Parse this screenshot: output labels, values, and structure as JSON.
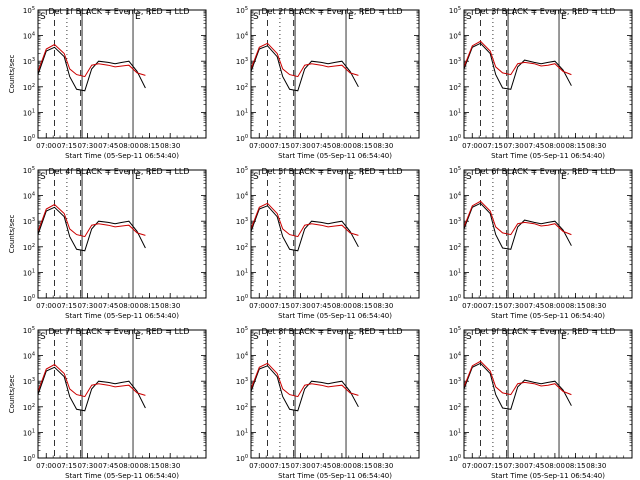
{
  "chart_data": [
    {
      "type": "line",
      "title": "Det 1f BLACK = Events, RED = LLD",
      "xlabel": "Start Time (05-Sep-11 06:54:40)",
      "ylabel": "Counts/sec",
      "x_tick_labels": [
        "07:00",
        "07:15",
        "07:30",
        "07:45",
        "08:00",
        "08:15",
        "08:30"
      ],
      "y_tick_labels": [
        "10^0",
        "10^1",
        "10^2",
        "10^3",
        "10^4",
        "10^5"
      ],
      "marker_labels": [
        "S",
        "E"
      ],
      "yscale": "log",
      "ylim": [
        1,
        100000
      ],
      "series": [
        {
          "name": "Events",
          "color": "#000000",
          "x": [
            "06:54",
            "07:00",
            "07:06",
            "07:13",
            "07:17",
            "07:22",
            "07:28",
            "07:33",
            "07:38",
            "07:45",
            "07:50",
            "07:55",
            "08:00",
            "08:06",
            "08:12"
          ],
          "values": [
            300,
            2500,
            3500,
            1500,
            250,
            80,
            70,
            500,
            1000,
            900,
            800,
            900,
            1000,
            400,
            90
          ]
        },
        {
          "name": "LLD",
          "color": "#cc0000",
          "x": [
            "06:54",
            "07:00",
            "07:06",
            "07:13",
            "07:17",
            "07:22",
            "07:28",
            "07:33",
            "07:38",
            "07:45",
            "07:50",
            "07:55",
            "08:00",
            "08:06",
            "08:12"
          ],
          "values": [
            400,
            3000,
            4500,
            2000,
            500,
            300,
            250,
            700,
            800,
            700,
            600,
            650,
            700,
            350,
            280
          ]
        }
      ]
    },
    {
      "type": "line",
      "title": "Det 2f BLACK = Events, RED = LLD",
      "xlabel": "Start Time (05-Sep-11 06:54:40)",
      "ylabel": "",
      "x_tick_labels": [
        "07:00",
        "07:15",
        "07:30",
        "07:45",
        "08:00",
        "08:15",
        "08:30"
      ],
      "y_tick_labels": [
        "10^0",
        "10^1",
        "10^2",
        "10^3",
        "10^4",
        "10^5"
      ],
      "marker_labels": [
        "S",
        "E"
      ],
      "yscale": "log",
      "ylim": [
        1,
        100000
      ],
      "series": [
        {
          "name": "Events",
          "color": "#000000",
          "x": [
            "06:54",
            "07:00",
            "07:06",
            "07:13",
            "07:17",
            "07:22",
            "07:28",
            "07:33",
            "07:38",
            "07:45",
            "07:50",
            "07:55",
            "08:00",
            "08:06",
            "08:12"
          ],
          "values": [
            400,
            3000,
            4000,
            1500,
            250,
            80,
            70,
            500,
            1000,
            900,
            800,
            900,
            1000,
            400,
            100
          ]
        },
        {
          "name": "LLD",
          "color": "#cc0000",
          "x": [
            "06:54",
            "07:00",
            "07:06",
            "07:13",
            "07:17",
            "07:22",
            "07:28",
            "07:33",
            "07:38",
            "07:45",
            "07:50",
            "07:55",
            "08:00",
            "08:06",
            "08:12"
          ],
          "values": [
            500,
            3500,
            5000,
            2000,
            500,
            300,
            250,
            700,
            800,
            700,
            600,
            650,
            700,
            350,
            280
          ]
        }
      ]
    },
    {
      "type": "line",
      "title": "Det 3f BLACK = Events, RED = LLD",
      "xlabel": "Start Time (05-Sep-11 06:54:40)",
      "ylabel": "",
      "x_tick_labels": [
        "07:00",
        "07:15",
        "07:30",
        "07:45",
        "08:00",
        "08:15",
        "08:30"
      ],
      "y_tick_labels": [
        "10^0",
        "10^1",
        "10^2",
        "10^3",
        "10^4",
        "10^5"
      ],
      "marker_labels": [
        "S",
        "E"
      ],
      "yscale": "log",
      "ylim": [
        1,
        100000
      ],
      "series": [
        {
          "name": "Events",
          "color": "#000000",
          "x": [
            "06:54",
            "07:00",
            "07:06",
            "07:13",
            "07:17",
            "07:22",
            "07:28",
            "07:33",
            "07:38",
            "07:45",
            "07:50",
            "07:55",
            "08:00",
            "08:06",
            "08:12"
          ],
          "values": [
            500,
            3500,
            5000,
            2000,
            300,
            90,
            80,
            600,
            1100,
            900,
            800,
            900,
            1000,
            450,
            110
          ]
        },
        {
          "name": "LLD",
          "color": "#cc0000",
          "x": [
            "06:54",
            "07:00",
            "07:06",
            "07:13",
            "07:17",
            "07:22",
            "07:28",
            "07:33",
            "07:38",
            "07:45",
            "07:50",
            "07:55",
            "08:00",
            "08:06",
            "08:12"
          ],
          "values": [
            600,
            4000,
            6000,
            2500,
            600,
            350,
            300,
            800,
            900,
            800,
            650,
            700,
            800,
            400,
            300
          ]
        }
      ]
    },
    {
      "type": "line",
      "title": "Det 4f BLACK = Events, RED = LLD",
      "xlabel": "Start Time (05-Sep-11 06:54:40)",
      "ylabel": "Counts/sec",
      "x_tick_labels": [
        "07:00",
        "07:15",
        "07:30",
        "07:45",
        "08:00",
        "08:15",
        "08:30"
      ],
      "y_tick_labels": [
        "10^0",
        "10^1",
        "10^2",
        "10^3",
        "10^4",
        "10^5"
      ],
      "marker_labels": [
        "S",
        "E"
      ],
      "yscale": "log",
      "ylim": [
        1,
        100000
      ],
      "series": [
        {
          "name": "Events",
          "color": "#000000",
          "x": [
            "06:54",
            "07:00",
            "07:06",
            "07:13",
            "07:17",
            "07:22",
            "07:28",
            "07:33",
            "07:38",
            "07:45",
            "07:50",
            "07:55",
            "08:00",
            "08:06",
            "08:12"
          ],
          "values": [
            300,
            2500,
            3500,
            1500,
            250,
            80,
            70,
            500,
            1000,
            900,
            800,
            900,
            1000,
            400,
            90
          ]
        },
        {
          "name": "LLD",
          "color": "#cc0000",
          "x": [
            "06:54",
            "07:00",
            "07:06",
            "07:13",
            "07:17",
            "07:22",
            "07:28",
            "07:33",
            "07:38",
            "07:45",
            "07:50",
            "07:55",
            "08:00",
            "08:06",
            "08:12"
          ],
          "values": [
            400,
            3000,
            4500,
            2000,
            500,
            300,
            250,
            700,
            800,
            700,
            600,
            650,
            700,
            350,
            280
          ]
        }
      ]
    },
    {
      "type": "line",
      "title": "Det 5f BLACK = Events, RED = LLD",
      "xlabel": "Start Time (05-Sep-11 06:54:40)",
      "ylabel": "",
      "x_tick_labels": [
        "07:00",
        "07:15",
        "07:30",
        "07:45",
        "08:00",
        "08:15",
        "08:30"
      ],
      "y_tick_labels": [
        "10^0",
        "10^1",
        "10^2",
        "10^3",
        "10^4",
        "10^5"
      ],
      "marker_labels": [
        "S",
        "E"
      ],
      "yscale": "log",
      "ylim": [
        1,
        100000
      ],
      "series": [
        {
          "name": "Events",
          "color": "#000000",
          "x": [
            "06:54",
            "07:00",
            "07:06",
            "07:13",
            "07:17",
            "07:22",
            "07:28",
            "07:33",
            "07:38",
            "07:45",
            "07:50",
            "07:55",
            "08:00",
            "08:06",
            "08:12"
          ],
          "values": [
            400,
            3000,
            4000,
            1500,
            250,
            80,
            70,
            500,
            1000,
            900,
            800,
            900,
            1000,
            400,
            100
          ]
        },
        {
          "name": "LLD",
          "color": "#cc0000",
          "x": [
            "06:54",
            "07:00",
            "07:06",
            "07:13",
            "07:17",
            "07:22",
            "07:28",
            "07:33",
            "07:38",
            "07:45",
            "07:50",
            "07:55",
            "08:00",
            "08:06",
            "08:12"
          ],
          "values": [
            500,
            3500,
            5000,
            2000,
            500,
            300,
            250,
            700,
            800,
            700,
            600,
            650,
            700,
            350,
            280
          ]
        }
      ]
    },
    {
      "type": "line",
      "title": "Det 6f BLACK = Events, RED = LLD",
      "xlabel": "Start Time (05-Sep-11 06:54:40)",
      "ylabel": "",
      "x_tick_labels": [
        "07:00",
        "07:15",
        "07:30",
        "07:45",
        "08:00",
        "08:15",
        "08:30"
      ],
      "y_tick_labels": [
        "10^0",
        "10^1",
        "10^2",
        "10^3",
        "10^4",
        "10^5"
      ],
      "marker_labels": [
        "S",
        "E"
      ],
      "yscale": "log",
      "ylim": [
        1,
        100000
      ],
      "series": [
        {
          "name": "Events",
          "color": "#000000",
          "x": [
            "06:54",
            "07:00",
            "07:06",
            "07:13",
            "07:17",
            "07:22",
            "07:28",
            "07:33",
            "07:38",
            "07:45",
            "07:50",
            "07:55",
            "08:00",
            "08:06",
            "08:12"
          ],
          "values": [
            500,
            3500,
            5000,
            2000,
            300,
            90,
            80,
            600,
            1100,
            900,
            800,
            900,
            1000,
            450,
            110
          ]
        },
        {
          "name": "LLD",
          "color": "#cc0000",
          "x": [
            "06:54",
            "07:00",
            "07:06",
            "07:13",
            "07:17",
            "07:22",
            "07:28",
            "07:33",
            "07:38",
            "07:45",
            "07:50",
            "07:55",
            "08:00",
            "08:06",
            "08:12"
          ],
          "values": [
            600,
            4000,
            6000,
            2500,
            600,
            350,
            300,
            800,
            900,
            800,
            650,
            700,
            800,
            400,
            300
          ]
        }
      ]
    },
    {
      "type": "line",
      "title": "Det 7f BLACK = Events, RED = LLD",
      "xlabel": "Start Time (05-Sep-11 06:54:40)",
      "ylabel": "Counts/sec",
      "x_tick_labels": [
        "07:00",
        "07:15",
        "07:30",
        "07:45",
        "08:00",
        "08:15",
        "08:30"
      ],
      "y_tick_labels": [
        "10^0",
        "10^1",
        "10^2",
        "10^3",
        "10^4",
        "10^5"
      ],
      "marker_labels": [
        "S",
        "E"
      ],
      "yscale": "log",
      "ylim": [
        1,
        100000
      ],
      "series": [
        {
          "name": "Events",
          "color": "#000000",
          "x": [
            "06:54",
            "07:00",
            "07:06",
            "07:13",
            "07:17",
            "07:22",
            "07:28",
            "07:33",
            "07:38",
            "07:45",
            "07:50",
            "07:55",
            "08:00",
            "08:06",
            "08:12"
          ],
          "values": [
            300,
            2500,
            3500,
            1500,
            250,
            80,
            70,
            500,
            1000,
            900,
            800,
            900,
            1000,
            400,
            90
          ]
        },
        {
          "name": "LLD",
          "color": "#cc0000",
          "x": [
            "06:54",
            "07:00",
            "07:06",
            "07:13",
            "07:17",
            "07:22",
            "07:28",
            "07:33",
            "07:38",
            "07:45",
            "07:50",
            "07:55",
            "08:00",
            "08:06",
            "08:12"
          ],
          "values": [
            400,
            3000,
            4500,
            2000,
            500,
            300,
            250,
            700,
            800,
            700,
            600,
            650,
            700,
            350,
            280
          ]
        }
      ]
    },
    {
      "type": "line",
      "title": "Det 8f BLACK = Events, RED = LLD",
      "xlabel": "Start Time (05-Sep-11 06:54:40)",
      "ylabel": "",
      "x_tick_labels": [
        "07:00",
        "07:15",
        "07:30",
        "07:45",
        "08:00",
        "08:15",
        "08:30"
      ],
      "y_tick_labels": [
        "10^0",
        "10^1",
        "10^2",
        "10^3",
        "10^4",
        "10^5"
      ],
      "marker_labels": [
        "S",
        "E"
      ],
      "yscale": "log",
      "ylim": [
        1,
        100000
      ],
      "series": [
        {
          "name": "Events",
          "color": "#000000",
          "x": [
            "06:54",
            "07:00",
            "07:06",
            "07:13",
            "07:17",
            "07:22",
            "07:28",
            "07:33",
            "07:38",
            "07:45",
            "07:50",
            "07:55",
            "08:00",
            "08:06",
            "08:12"
          ],
          "values": [
            400,
            3000,
            4000,
            1500,
            250,
            80,
            70,
            500,
            1000,
            900,
            800,
            900,
            1000,
            400,
            100
          ]
        },
        {
          "name": "LLD",
          "color": "#cc0000",
          "x": [
            "06:54",
            "07:00",
            "07:06",
            "07:13",
            "07:17",
            "07:22",
            "07:28",
            "07:33",
            "07:38",
            "07:45",
            "07:50",
            "07:55",
            "08:00",
            "08:06",
            "08:12"
          ],
          "values": [
            500,
            3500,
            5000,
            2000,
            500,
            300,
            250,
            700,
            800,
            700,
            600,
            650,
            700,
            350,
            280
          ]
        }
      ]
    },
    {
      "type": "line",
      "title": "Det 9f BLACK = Events, RED = LLD",
      "xlabel": "Start Time (05-Sep-11 06:54:40)",
      "ylabel": "",
      "x_tick_labels": [
        "07:00",
        "07:15",
        "07:30",
        "07:45",
        "08:00",
        "08:15",
        "08:30"
      ],
      "y_tick_labels": [
        "10^0",
        "10^1",
        "10^2",
        "10^3",
        "10^4",
        "10^5"
      ],
      "marker_labels": [
        "S",
        "E"
      ],
      "yscale": "log",
      "ylim": [
        1,
        100000
      ],
      "series": [
        {
          "name": "Events",
          "color": "#000000",
          "x": [
            "06:54",
            "07:00",
            "07:06",
            "07:13",
            "07:17",
            "07:22",
            "07:28",
            "07:33",
            "07:38",
            "07:45",
            "07:50",
            "07:55",
            "08:00",
            "08:06",
            "08:12"
          ],
          "values": [
            500,
            3500,
            5000,
            2000,
            300,
            90,
            80,
            600,
            1100,
            900,
            800,
            900,
            1000,
            450,
            110
          ]
        },
        {
          "name": "LLD",
          "color": "#cc0000",
          "x": [
            "06:54",
            "07:00",
            "07:06",
            "07:13",
            "07:17",
            "07:22",
            "07:28",
            "07:33",
            "07:38",
            "07:45",
            "07:50",
            "07:55",
            "08:00",
            "08:06",
            "08:12"
          ],
          "values": [
            600,
            4000,
            6000,
            2500,
            600,
            350,
            300,
            800,
            900,
            800,
            650,
            700,
            800,
            400,
            300
          ]
        }
      ]
    }
  ]
}
